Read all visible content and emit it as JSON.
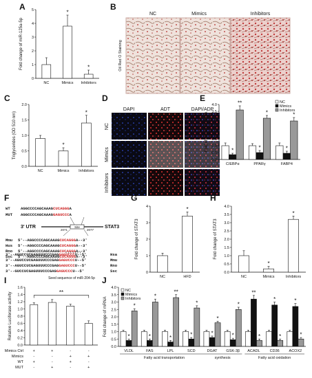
{
  "panels": {
    "A": {
      "letter": "A",
      "ylabel": "Fold change of miR-125a-5p",
      "yticks": [
        "0",
        "1",
        "2",
        "3",
        "4",
        "5"
      ],
      "categories": [
        "NC",
        "Mimics",
        "Inhibitors"
      ]
    },
    "B": {
      "letter": "B",
      "headers": [
        "NC",
        "Mimics",
        "Inhibitors"
      ],
      "side": "Oil Red O Staining"
    },
    "C": {
      "letter": "C",
      "ylabel": "Triglycerides (OD 510 nm)",
      "yticks": [
        "0.0",
        "0.5",
        "1.0",
        "1.5",
        "2.0"
      ],
      "categories": [
        "NC",
        "Mimics",
        "Inhibitors"
      ]
    },
    "D": {
      "letter": "D",
      "headers": [
        "DAPI",
        "ADT",
        "DAPI/ADP"
      ],
      "rows": [
        "NC",
        "Mimics",
        "Inhibitors"
      ]
    },
    "E": {
      "letter": "E",
      "ylabel": "Fold change of mRNA",
      "yticks": [
        "0.0",
        "0.5",
        "1.0",
        "1.5",
        "2.0",
        "2.5",
        "3.0",
        "3.5",
        "4.0"
      ],
      "categories": [
        "C/EBPα",
        "PPARγ",
        "FABP4"
      ],
      "legend": [
        "NC",
        "Mimics",
        "Inhibitors"
      ]
    },
    "F": {
      "letter": "F",
      "wt_label": "WT",
      "wt_seq": "AGGCCCCAGCAAAG",
      "wt_site": "CUCAGGG",
      "wt_end": "A",
      "mut_label": "MUT",
      "mut_seq": "AGGCCCCAGCAAAG",
      "mut_site": "GAGUCCC",
      "mut_end": "A",
      "utr": "3' UTR",
      "site": "Site",
      "gene": "STAT3",
      "pos1": "2071",
      "pos2": "2077",
      "species": [
        {
          "name": "Mmu",
          "pre": "5'--AGGCCCCAGCAAAG",
          "site": "CUCAGGG",
          "post": "A--3'"
        },
        {
          "name": "Hus",
          "pre": "5'--AGGCCCCAGCAAAG",
          "site": "CUCAGGG",
          "post": "A--3'"
        },
        {
          "name": "Rno",
          "pre": "5'--AGGCCCCAGCAAAG",
          "site": "CUCAGGG",
          "post": "A--3'"
        },
        {
          "name": "Ssc",
          "pre": "5'--AGGCCCCAGCAAAG",
          "site": "CUCAGGG",
          "post": "A--3'"
        }
      ],
      "mirs": [
        {
          "pre": "3'--AGUCCUCGAGUUUCCCGAG",
          "site": "GAGUCCC",
          "post": "U--5'",
          "name": "Hsa"
        },
        {
          "pre": "3'--AGUCCUCGAGUUUCCCGAG",
          "site": "GAGUCCC",
          "post": "U--5'",
          "name": "Mmu"
        },
        {
          "pre": "3'--AGUCCUCGAGUUUCCCGAG",
          "site": "GAGUCCC",
          "post": "U--5'",
          "name": "Rno"
        },
        {
          "pre": "3'--GUCCUCGAGUUUCCCGAG",
          "site": "GAGUCCC",
          "post": "U--5'",
          "name": "Ssc"
        }
      ],
      "seed": "Seed sequence of miR-204-5p"
    },
    "G": {
      "letter": "G",
      "ylabel": "Fold change of STAT3",
      "yticks": [
        "0",
        "1",
        "2",
        "3",
        "4"
      ],
      "categories": [
        "NC",
        "HFD"
      ]
    },
    "H": {
      "letter": "H",
      "ylabel": "Fold change of STAT3",
      "yticks": [
        "0.0",
        "0.5",
        "1.0",
        "1.5",
        "2.0",
        "2.5",
        "3.0",
        "3.5",
        "4.0"
      ],
      "categories": [
        "NC",
        "Mimics",
        "Inhibitors"
      ]
    },
    "I": {
      "letter": "I",
      "ylabel": "Relative Luciferase activity",
      "yticks": [
        "0.0",
        "0.2",
        "0.4",
        "0.6",
        "0.8",
        "1.0",
        "1.2",
        "1.4",
        "1.6"
      ],
      "sig": "**",
      "rows": [
        {
          "label": "Mimics Ctrl",
          "marks": [
            "+",
            "+",
            "-",
            "-"
          ]
        },
        {
          "label": "Mimics",
          "marks": [
            "-",
            "-",
            "+",
            "+"
          ]
        },
        {
          "label": "WT",
          "marks": [
            "+",
            "-",
            "+",
            "-"
          ]
        },
        {
          "label": "MUT",
          "marks": [
            "-",
            "+",
            "-",
            "+"
          ]
        }
      ]
    },
    "J": {
      "letter": "J",
      "ylabel": "Fold change of mRNA",
      "yticks": [
        "0.0",
        "0.5",
        "1.0",
        "1.5",
        "2.0",
        "2.5",
        "3.0",
        "3.5",
        "4.0"
      ],
      "categories": [
        "VLDL",
        "FAS",
        "LPL",
        "SCD",
        "DGAT",
        "GSK-3β",
        "ACADL",
        "CD36",
        "ACOX2"
      ],
      "legend": [
        "NC",
        "Mimics",
        "Inhibitors"
      ],
      "group1": "Fatty acid transportation",
      "group2": "synthesis",
      "group3": "Fatty acid oxidation"
    }
  },
  "colors": {
    "bar_white": "#ffffff",
    "bar_black": "#111111",
    "bar_gray": "#999999",
    "sig_red": "#cc2222",
    "stain_bg": "#efe0dc",
    "fluor_bg": "#0a0a14"
  },
  "chart_data": [
    {
      "type": "bar",
      "panel": "A",
      "categories": [
        "NC",
        "Mimics",
        "Inhibitors"
      ],
      "values": [
        1.0,
        3.8,
        0.3
      ],
      "errors": [
        0.5,
        0.8,
        0.3
      ],
      "sig": [
        "",
        "*",
        "*"
      ],
      "ylim": [
        0,
        5
      ],
      "ylabel": "Fold change of miR-125a-5p"
    },
    {
      "type": "bar",
      "panel": "C",
      "categories": [
        "NC",
        "Mimics",
        "Inhibitors"
      ],
      "values": [
        0.9,
        0.5,
        1.4
      ],
      "errors": [
        0.1,
        0.1,
        0.25
      ],
      "sig": [
        "",
        "*",
        "*"
      ],
      "ylim": [
        0,
        2
      ],
      "ylabel": "Triglycerides (OD 510 nm)"
    },
    {
      "type": "bar",
      "panel": "E",
      "categories": [
        "C/EBPα",
        "PPARγ",
        "FABP4"
      ],
      "series": [
        {
          "name": "NC",
          "values": [
            1.0,
            1.0,
            1.0
          ],
          "errors": [
            0.2,
            0.15,
            0.2
          ]
        },
        {
          "name": "Mimics",
          "values": [
            0.35,
            0.5,
            0.45
          ],
          "errors": [
            0.1,
            0.15,
            0.15
          ]
        },
        {
          "name": "Inhibitors",
          "values": [
            3.6,
            3.0,
            2.8
          ],
          "errors": [
            0.3,
            0.2,
            0.25
          ]
        }
      ],
      "sig": [
        [
          "",
          "*",
          "**"
        ],
        [
          "",
          "*",
          "*"
        ],
        [
          "",
          "*",
          "*"
        ]
      ],
      "ylim": [
        0,
        4
      ],
      "ylabel": "Fold change of mRNA"
    },
    {
      "type": "bar",
      "panel": "G",
      "categories": [
        "NC",
        "HFD"
      ],
      "values": [
        1.0,
        3.4
      ],
      "errors": [
        0.15,
        0.25
      ],
      "sig": [
        "",
        "*"
      ],
      "ylim": [
        0,
        4
      ],
      "ylabel": "Fold change of STAT3"
    },
    {
      "type": "bar",
      "panel": "H",
      "categories": [
        "NC",
        "Mimics",
        "Inhibitors"
      ],
      "values": [
        1.0,
        0.2,
        3.2
      ],
      "errors": [
        0.3,
        0.15,
        0.2
      ],
      "sig": [
        "",
        "*",
        "*"
      ],
      "ylim": [
        0,
        4
      ],
      "ylabel": "Fold change of STAT3"
    },
    {
      "type": "bar",
      "panel": "I",
      "categories": [
        "1",
        "2",
        "3",
        "4"
      ],
      "values": [
        1.12,
        1.18,
        1.08,
        0.6
      ],
      "errors": [
        0.05,
        0.08,
        0.05,
        0.07
      ],
      "sig": [
        "",
        "",
        "",
        ""
      ],
      "ylim": [
        0,
        1.6
      ],
      "ylabel": "Relative Luciferase activity"
    },
    {
      "type": "bar",
      "panel": "J",
      "categories": [
        "VLDL",
        "FAS",
        "LPL",
        "SCD",
        "DGAT",
        "GSK-3β",
        "ACADL",
        "CD36",
        "ACOX2"
      ],
      "series": [
        {
          "name": "NC",
          "values": [
            1.0,
            1.0,
            1.0,
            1.0,
            1.0,
            1.0,
            1.0,
            1.0,
            1.0
          ],
          "errors": [
            0.1,
            0.1,
            0.1,
            0.1,
            0.1,
            0.1,
            0.1,
            0.1,
            0.1
          ]
        },
        {
          "name": "Mimics",
          "values": [
            0.4,
            0.4,
            0.3,
            0.5,
            0.6,
            0.45,
            3.2,
            2.8,
            2.7
          ],
          "errors": [
            0.1,
            0.1,
            0.1,
            0.1,
            0.1,
            0.1,
            0.25,
            0.2,
            0.2
          ]
        },
        {
          "name": "Inhibitors",
          "values": [
            2.4,
            3.0,
            3.3,
            2.6,
            1.6,
            2.5,
            0.4,
            0.4,
            0.5
          ],
          "errors": [
            0.15,
            0.2,
            0.2,
            0.15,
            0.1,
            0.15,
            0.1,
            0.1,
            0.1
          ]
        }
      ],
      "sig": [
        [
          "",
          "*",
          "*"
        ],
        [
          "",
          "*",
          "*"
        ],
        [
          "",
          "*",
          "**"
        ],
        [
          "",
          "*",
          "*"
        ],
        [
          "",
          "*",
          "*"
        ],
        [
          "",
          "*",
          "*"
        ],
        [
          "",
          "**",
          "*"
        ],
        [
          "",
          "*",
          "*"
        ],
        [
          "",
          "*",
          "*"
        ]
      ],
      "ylim": [
        0,
        4
      ],
      "ylabel": "Fold change of mRNA"
    }
  ]
}
